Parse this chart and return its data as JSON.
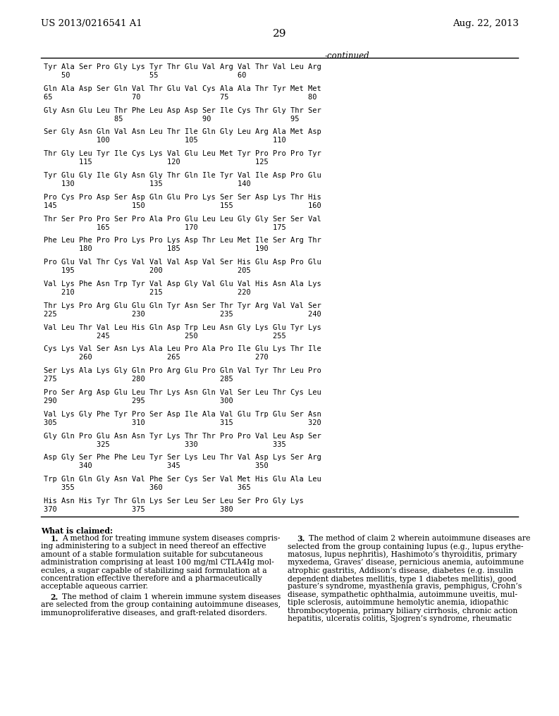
{
  "background_color": "#ffffff",
  "header_left": "US 2013/0216541 A1",
  "header_right": "Aug. 22, 2013",
  "page_number": "29",
  "continued_label": "-continued",
  "sequence_lines": [
    [
      "Tyr Ala Ser Pro Gly Lys Tyr Thr Glu Val Arg Val Thr Val Leu Arg",
      "    50                  55                  60"
    ],
    [
      "Gln Ala Asp Ser Gln Val Thr Glu Val Cys Ala Ala Thr Tyr Met Met",
      "65                  70                  75                  80"
    ],
    [
      "Gly Asn Glu Leu Thr Phe Leu Asp Asp Ser Ile Cys Thr Gly Thr Ser",
      "                85                  90                  95"
    ],
    [
      "Ser Gly Asn Gln Val Asn Leu Thr Ile Gln Gly Leu Arg Ala Met Asp",
      "            100                 105                 110"
    ],
    [
      "Thr Gly Leu Tyr Ile Cys Lys Val Glu Leu Met Tyr Pro Pro Pro Tyr",
      "        115                 120                 125"
    ],
    [
      "Tyr Glu Gly Ile Gly Asn Gly Thr Gln Ile Tyr Val Ile Asp Pro Glu",
      "    130                 135                 140"
    ],
    [
      "Pro Cys Pro Asp Ser Asp Gln Glu Pro Lys Ser Ser Asp Lys Thr His",
      "145                 150                 155                 160"
    ],
    [
      "Thr Ser Pro Pro Ser Pro Ala Pro Glu Leu Leu Gly Gly Ser Ser Val",
      "            165                 170                 175"
    ],
    [
      "Phe Leu Phe Pro Pro Lys Pro Lys Asp Thr Leu Met Ile Ser Arg Thr",
      "        180                 185                 190"
    ],
    [
      "Pro Glu Val Thr Cys Val Val Val Asp Val Ser His Glu Asp Pro Glu",
      "    195                 200                 205"
    ],
    [
      "Val Lys Phe Asn Trp Tyr Val Asp Gly Val Glu Val His Asn Ala Lys",
      "    210                 215                 220"
    ],
    [
      "Thr Lys Pro Arg Glu Glu Gln Tyr Asn Ser Thr Tyr Arg Val Val Ser",
      "225                 230                 235                 240"
    ],
    [
      "Val Leu Thr Val Leu His Gln Asp Trp Leu Asn Gly Lys Glu Tyr Lys",
      "            245                 250                 255"
    ],
    [
      "Cys Lys Val Ser Asn Lys Ala Leu Pro Ala Pro Ile Glu Lys Thr Ile",
      "        260                 265                 270"
    ],
    [
      "Ser Lys Ala Lys Gly Gln Pro Arg Glu Pro Gln Val Tyr Thr Leu Pro",
      "275                 280                 285"
    ],
    [
      "Pro Ser Arg Asp Glu Leu Thr Lys Asn Gln Val Ser Leu Thr Cys Leu",
      "290                 295                 300"
    ],
    [
      "Val Lys Gly Phe Tyr Pro Ser Asp Ile Ala Val Glu Trp Glu Ser Asn",
      "305                 310                 315                 320"
    ],
    [
      "Gly Gln Pro Glu Asn Asn Tyr Lys Thr Thr Pro Pro Val Leu Asp Ser",
      "            325                 330                 335"
    ],
    [
      "Asp Gly Ser Phe Phe Leu Tyr Ser Lys Leu Thr Val Asp Lys Ser Arg",
      "        340                 345                 350"
    ],
    [
      "Trp Gln Gln Gly Asn Val Phe Ser Cys Ser Val Met His Glu Ala Leu",
      "    355                 360                 365"
    ],
    [
      "His Asn His Tyr Thr Gln Lys Ser Leu Ser Leu Ser Pro Gly Lys",
      "370                 375                 380"
    ]
  ],
  "claim1_lines": [
    [
      "bold",
      "1.",
      "A method for treating immune system diseases compris-"
    ],
    [
      "normal",
      "",
      "ing administering to a subject in need thereof an effective"
    ],
    [
      "normal",
      "",
      "amount of a stable formulation suitable for subcutaneous"
    ],
    [
      "normal",
      "",
      "administration comprising at least 100 mg/ml CTLA4Ig mol-"
    ],
    [
      "normal",
      "",
      "ecules, a sugar capable of stabilizing said formulation at a"
    ],
    [
      "normal",
      "",
      "concentration effective therefore and a pharmaceutically"
    ],
    [
      "normal",
      "",
      "acceptable aqueous carrier."
    ]
  ],
  "claim2_lines": [
    [
      "bold",
      "2.",
      "The method of claim 1 wherein immune system diseases"
    ],
    [
      "normal",
      "",
      "are selected from the group containing autoimmune diseases,"
    ],
    [
      "normal",
      "",
      "immunoproliferative diseases, and graft-related disorders."
    ]
  ],
  "claim3_lines": [
    [
      "bold",
      "3.",
      "The method of claim 2 wherein autoimmune diseases are"
    ],
    [
      "normal",
      "",
      "selected from the group containing lupus (e.g., lupus erythe-"
    ],
    [
      "normal",
      "",
      "matosus, lupus nephritis), Hashimoto’s thyroiditis, primary"
    ],
    [
      "normal",
      "",
      "myxedema, Graves’ disease, pernicious anemia, autoimmune"
    ],
    [
      "normal",
      "",
      "atrophic gastritis, Addison’s disease, diabetes (e.g. insulin"
    ],
    [
      "normal",
      "",
      "dependent diabetes mellitis, type 1 diabetes mellitis), good"
    ],
    [
      "normal",
      "",
      "pasture’s syndrome, myasthenia gravis, pemphigus, Crohn’s"
    ],
    [
      "normal",
      "",
      "disease, sympathetic ophthalmia, autoimmune uveitis, mul-"
    ],
    [
      "normal",
      "",
      "tiple sclerosis, autoimmune hemolytic anemia, idiopathic"
    ],
    [
      "normal",
      "",
      "thrombocytopenia, primary biliary cirrhosis, chronic action"
    ],
    [
      "normal",
      "",
      "hepatitis, ulceratis colitis, Sjogren’s syndrome, rheumatic"
    ]
  ]
}
